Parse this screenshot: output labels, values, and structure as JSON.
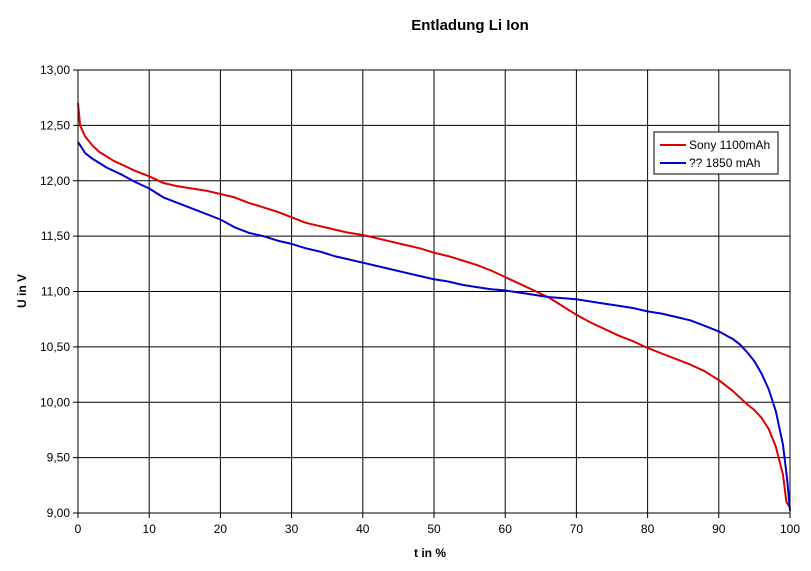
{
  "chart_data": {
    "type": "line",
    "title": "Entladung Li Ion",
    "xlabel": "t in %",
    "ylabel": "U in V",
    "xlim": [
      0,
      100
    ],
    "ylim": [
      9.0,
      13.0
    ],
    "x_ticks": [
      0,
      10,
      20,
      30,
      40,
      50,
      60,
      70,
      80,
      90,
      100
    ],
    "y_ticks": [
      9.0,
      9.5,
      10.0,
      10.5,
      11.0,
      11.5,
      12.0,
      12.5,
      13.0
    ],
    "x_tick_labels": [
      "0",
      "10",
      "20",
      "30",
      "40",
      "50",
      "60",
      "70",
      "80",
      "90",
      "100"
    ],
    "y_tick_labels": [
      "9,00",
      "9,50",
      "10,00",
      "10,50",
      "11,00",
      "11,50",
      "12,00",
      "12,50",
      "13,00"
    ],
    "grid": true,
    "legend_position": "top-right",
    "series": [
      {
        "name": "Sony 1100mAh",
        "color": "#dd0000",
        "points": [
          [
            0,
            12.7
          ],
          [
            0.3,
            12.5
          ],
          [
            1,
            12.4
          ],
          [
            2,
            12.32
          ],
          [
            3,
            12.26
          ],
          [
            4,
            12.22
          ],
          [
            5,
            12.18
          ],
          [
            6,
            12.15
          ],
          [
            8,
            12.09
          ],
          [
            10,
            12.04
          ],
          [
            12,
            11.98
          ],
          [
            14,
            11.95
          ],
          [
            16,
            11.93
          ],
          [
            18,
            11.91
          ],
          [
            20,
            11.88
          ],
          [
            22,
            11.85
          ],
          [
            24,
            11.8
          ],
          [
            26,
            11.76
          ],
          [
            28,
            11.72
          ],
          [
            30,
            11.67
          ],
          [
            32,
            11.62
          ],
          [
            34,
            11.59
          ],
          [
            36,
            11.56
          ],
          [
            38,
            11.53
          ],
          [
            40,
            11.51
          ],
          [
            42,
            11.48
          ],
          [
            44,
            11.45
          ],
          [
            46,
            11.42
          ],
          [
            48,
            11.39
          ],
          [
            50,
            11.35
          ],
          [
            52,
            11.32
          ],
          [
            54,
            11.28
          ],
          [
            56,
            11.24
          ],
          [
            58,
            11.19
          ],
          [
            60,
            11.13
          ],
          [
            62,
            11.07
          ],
          [
            64,
            11.01
          ],
          [
            66,
            10.95
          ],
          [
            68,
            10.87
          ],
          [
            70,
            10.79
          ],
          [
            72,
            10.72
          ],
          [
            74,
            10.66
          ],
          [
            76,
            10.6
          ],
          [
            78,
            10.55
          ],
          [
            80,
            10.49
          ],
          [
            82,
            10.44
          ],
          [
            84,
            10.39
          ],
          [
            86,
            10.34
          ],
          [
            88,
            10.28
          ],
          [
            90,
            10.2
          ],
          [
            91,
            10.15
          ],
          [
            92,
            10.1
          ],
          [
            93,
            10.04
          ],
          [
            94,
            9.98
          ],
          [
            95,
            9.93
          ],
          [
            96,
            9.86
          ],
          [
            97,
            9.76
          ],
          [
            98,
            9.6
          ],
          [
            99,
            9.35
          ],
          [
            99.5,
            9.1
          ],
          [
            100,
            9.05
          ]
        ]
      },
      {
        "name": "?? 1850 mAh",
        "color": "#0000cc",
        "points": [
          [
            0,
            12.35
          ],
          [
            0.5,
            12.3
          ],
          [
            1,
            12.25
          ],
          [
            2,
            12.2
          ],
          [
            3,
            12.16
          ],
          [
            4,
            12.12
          ],
          [
            5,
            12.09
          ],
          [
            6,
            12.06
          ],
          [
            8,
            11.99
          ],
          [
            10,
            11.93
          ],
          [
            12,
            11.85
          ],
          [
            14,
            11.8
          ],
          [
            16,
            11.75
          ],
          [
            18,
            11.7
          ],
          [
            20,
            11.65
          ],
          [
            22,
            11.58
          ],
          [
            24,
            11.53
          ],
          [
            26,
            11.5
          ],
          [
            28,
            11.46
          ],
          [
            30,
            11.43
          ],
          [
            32,
            11.39
          ],
          [
            34,
            11.36
          ],
          [
            36,
            11.32
          ],
          [
            38,
            11.29
          ],
          [
            40,
            11.26
          ],
          [
            42,
            11.23
          ],
          [
            44,
            11.2
          ],
          [
            46,
            11.17
          ],
          [
            48,
            11.14
          ],
          [
            50,
            11.11
          ],
          [
            52,
            11.09
          ],
          [
            54,
            11.06
          ],
          [
            56,
            11.04
          ],
          [
            58,
            11.02
          ],
          [
            60,
            11.01
          ],
          [
            62,
            10.99
          ],
          [
            64,
            10.97
          ],
          [
            66,
            10.95
          ],
          [
            68,
            10.94
          ],
          [
            70,
            10.93
          ],
          [
            72,
            10.91
          ],
          [
            74,
            10.89
          ],
          [
            76,
            10.87
          ],
          [
            78,
            10.85
          ],
          [
            80,
            10.82
          ],
          [
            82,
            10.8
          ],
          [
            84,
            10.77
          ],
          [
            86,
            10.74
          ],
          [
            88,
            10.69
          ],
          [
            90,
            10.64
          ],
          [
            92,
            10.57
          ],
          [
            93,
            10.52
          ],
          [
            94,
            10.45
          ],
          [
            95,
            10.37
          ],
          [
            96,
            10.26
          ],
          [
            97,
            10.12
          ],
          [
            98,
            9.92
          ],
          [
            99,
            9.62
          ],
          [
            99.6,
            9.3
          ],
          [
            100,
            9.02
          ]
        ]
      }
    ]
  }
}
